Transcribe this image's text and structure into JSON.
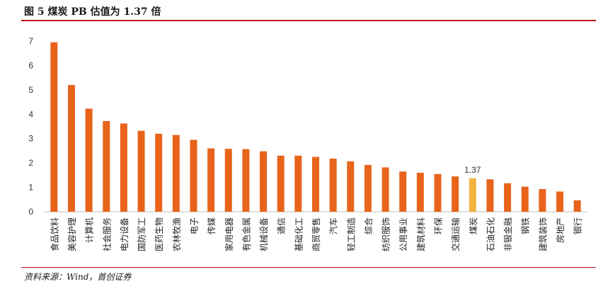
{
  "header": {
    "title": "图 5 煤炭 PB 估值为 1.37 倍"
  },
  "footer": {
    "source": "资料来源：Wind，首创证券"
  },
  "colors": {
    "bar": "#e8641b",
    "highlight": "#f2b340",
    "rule": "#c0121c"
  },
  "chart_data": {
    "type": "bar",
    "title": "图 5 煤炭 PB 估值为 1.37 倍",
    "xlabel": "",
    "ylabel": "",
    "ylim": [
      0,
      7
    ],
    "yticks": [
      0,
      1,
      2,
      3,
      4,
      5,
      6,
      7
    ],
    "grid": false,
    "legend": "none",
    "highlight_category": "煤炭",
    "categories": [
      "食品饮料",
      "美容护理",
      "计算机",
      "社会服务",
      "电力设备",
      "国防军工",
      "医药生物",
      "农林牧渔",
      "电子",
      "传媒",
      "家用电器",
      "有色金属",
      "机械设备",
      "通信",
      "基础化工",
      "商贸零售",
      "汽车",
      "轻工制造",
      "综合",
      "纺织服饰",
      "公用事业",
      "建筑材料",
      "环保",
      "交通运输",
      "煤炭",
      "石油石化",
      "非银金融",
      "钢铁",
      "建筑装饰",
      "房地产",
      "银行"
    ],
    "values": [
      6.95,
      5.2,
      4.23,
      3.72,
      3.62,
      3.32,
      3.2,
      3.15,
      2.95,
      2.6,
      2.58,
      2.57,
      2.48,
      2.3,
      2.3,
      2.25,
      2.18,
      2.07,
      1.92,
      1.82,
      1.65,
      1.6,
      1.55,
      1.45,
      1.37,
      1.33,
      1.17,
      1.03,
      0.93,
      0.83,
      0.47
    ],
    "data_labels": [
      {
        "category": "煤炭",
        "text": "1.37"
      }
    ]
  }
}
